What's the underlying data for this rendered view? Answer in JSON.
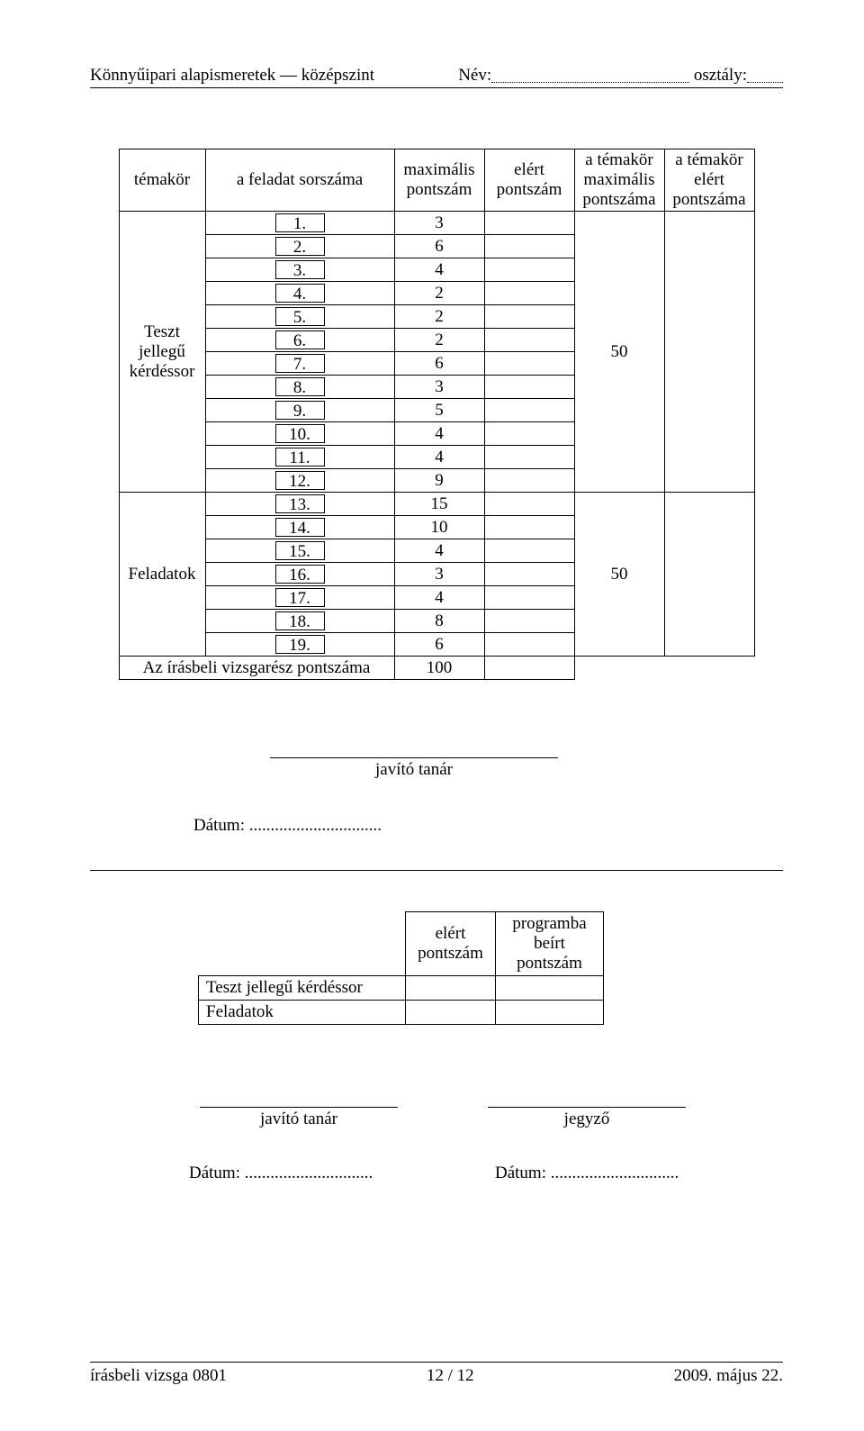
{
  "header": {
    "left": "Könnyűipari alapismeretek — középszint",
    "name_label": "Név:",
    "class_label": " osztály:"
  },
  "table": {
    "headers": {
      "temakor": "témakör",
      "sorszam": "a feladat sorszáma",
      "max": "maximális\npontszám",
      "elert": "elért\npontszám",
      "tmax": "a témakör\nmaximális\npontszáma",
      "telert": "a témakör\nelért\npontszáma"
    },
    "group1_label": "Teszt\njellegű\nkérdéssor",
    "group2_label": "Feladatok",
    "group1_max": "50",
    "group2_max": "50",
    "rows1": [
      {
        "n": "1.",
        "m": "3"
      },
      {
        "n": "2.",
        "m": "6"
      },
      {
        "n": "3.",
        "m": "4"
      },
      {
        "n": "4.",
        "m": "2"
      },
      {
        "n": "5.",
        "m": "2"
      },
      {
        "n": "6.",
        "m": "2"
      },
      {
        "n": "7.",
        "m": "6"
      },
      {
        "n": "8.",
        "m": "3"
      },
      {
        "n": "9.",
        "m": "5"
      },
      {
        "n": "10.",
        "m": "4"
      },
      {
        "n": "11.",
        "m": "4"
      },
      {
        "n": "12.",
        "m": "9"
      }
    ],
    "rows2": [
      {
        "n": "13.",
        "m": "15"
      },
      {
        "n": "14.",
        "m": "10"
      },
      {
        "n": "15.",
        "m": "4"
      },
      {
        "n": "16.",
        "m": "3"
      },
      {
        "n": "17.",
        "m": "4"
      },
      {
        "n": "18.",
        "m": "8"
      },
      {
        "n": "19.",
        "m": "6"
      }
    ],
    "total_label": "Az írásbeli vizsgarész pontszáma",
    "total_max": "100"
  },
  "sig1": {
    "label": "javító tanár",
    "date": "Dátum: ..............................."
  },
  "table2": {
    "h_elert": "elért\npontszám",
    "h_prog": "programba\nbeírt\npontszám",
    "r1": "Teszt jellegű kérdéssor",
    "r2": "Feladatok"
  },
  "sig2": {
    "left": "javító tanár",
    "right": "jegyző",
    "date_left": "Dátum: ..............................",
    "date_right": "Dátum: .............................."
  },
  "footer": {
    "left": "írásbeli vizsga 0801",
    "center": "12 / 12",
    "right": "2009. május 22."
  }
}
